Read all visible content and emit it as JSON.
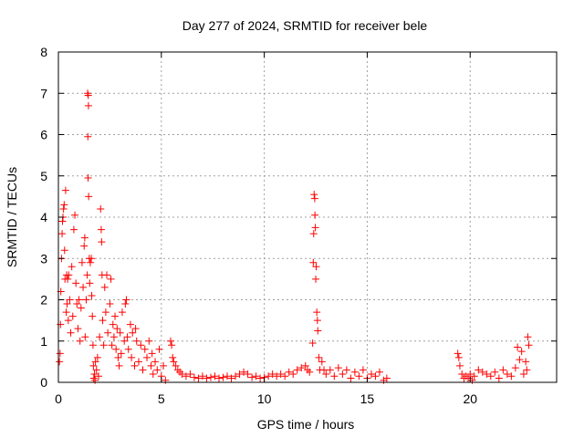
{
  "chart_data": {
    "type": "scatter",
    "title": "Day 277 of 2024, SRMTID for receiver bele",
    "xlabel": "GPS time / hours",
    "ylabel": "SRMTID / TECUs",
    "xlim": [
      0,
      24.2
    ],
    "ylim": [
      0,
      8
    ],
    "xticks": [
      0,
      5,
      10,
      15,
      20
    ],
    "yticks": [
      0,
      1,
      2,
      3,
      4,
      5,
      6,
      7,
      8
    ],
    "grid": true,
    "marker": "+",
    "colors": {
      "marker": "#ff0000",
      "grid": "#a0a0a0",
      "axis": "#000000"
    },
    "series": [
      {
        "name": "SRMTID",
        "points": [
          [
            0.05,
            0.5
          ],
          [
            0.08,
            0.7
          ],
          [
            0.1,
            1.4
          ],
          [
            0.12,
            2.2
          ],
          [
            0.15,
            3.0
          ],
          [
            0.18,
            3.6
          ],
          [
            0.2,
            3.9
          ],
          [
            0.22,
            4.0
          ],
          [
            0.25,
            4.2
          ],
          [
            0.28,
            4.3
          ],
          [
            0.3,
            3.2
          ],
          [
            0.32,
            2.5
          ],
          [
            0.35,
            4.65
          ],
          [
            0.38,
            1.7
          ],
          [
            0.4,
            2.6
          ],
          [
            0.42,
            1.9
          ],
          [
            0.45,
            2.5
          ],
          [
            0.48,
            1.5
          ],
          [
            0.5,
            2.6
          ],
          [
            0.55,
            2.0
          ],
          [
            0.6,
            1.2
          ],
          [
            0.65,
            2.8
          ],
          [
            0.7,
            1.6
          ],
          [
            0.75,
            3.7
          ],
          [
            0.8,
            4.05
          ],
          [
            0.85,
            2.4
          ],
          [
            0.9,
            1.9
          ],
          [
            0.95,
            1.3
          ],
          [
            1.0,
            2.0
          ],
          [
            1.05,
            1.0
          ],
          [
            1.1,
            1.8
          ],
          [
            1.15,
            2.9
          ],
          [
            1.2,
            2.3
          ],
          [
            1.25,
            3.3
          ],
          [
            1.28,
            3.5
          ],
          [
            1.3,
            1.1
          ],
          [
            1.35,
            2.0
          ],
          [
            1.4,
            2.6
          ],
          [
            1.42,
            7.0
          ],
          [
            1.45,
            6.95
          ],
          [
            1.46,
            6.7
          ],
          [
            1.43,
            5.95
          ],
          [
            1.44,
            4.95
          ],
          [
            1.47,
            4.5
          ],
          [
            1.5,
            3.0
          ],
          [
            1.52,
            2.4
          ],
          [
            1.55,
            2.9
          ],
          [
            1.6,
            3.0
          ],
          [
            1.62,
            2.1
          ],
          [
            1.65,
            1.6
          ],
          [
            1.68,
            0.9
          ],
          [
            1.7,
            0.4
          ],
          [
            1.72,
            0.1
          ],
          [
            1.75,
            0.2
          ],
          [
            1.78,
            0.05
          ],
          [
            1.8,
            0.5
          ],
          [
            1.85,
            0.3
          ],
          [
            1.9,
            0.6
          ],
          [
            1.95,
            0.15
          ],
          [
            2.0,
            1.1
          ],
          [
            2.05,
            4.2
          ],
          [
            2.08,
            3.7
          ],
          [
            2.1,
            3.4
          ],
          [
            2.12,
            2.6
          ],
          [
            2.15,
            1.5
          ],
          [
            2.2,
            0.9
          ],
          [
            2.25,
            2.3
          ],
          [
            2.3,
            1.7
          ],
          [
            2.35,
            2.6
          ],
          [
            2.4,
            1.2
          ],
          [
            2.5,
            1.9
          ],
          [
            2.55,
            2.5
          ],
          [
            2.6,
            0.9
          ],
          [
            2.65,
            1.4
          ],
          [
            2.7,
            1.1
          ],
          [
            2.75,
            1.6
          ],
          [
            2.8,
            0.8
          ],
          [
            2.85,
            1.3
          ],
          [
            2.9,
            0.6
          ],
          [
            2.95,
            0.4
          ],
          [
            3.0,
            1.2
          ],
          [
            3.05,
            0.7
          ],
          [
            3.1,
            1.7
          ],
          [
            3.2,
            1.0
          ],
          [
            3.25,
            1.9
          ],
          [
            3.3,
            2.0
          ],
          [
            3.35,
            1.1
          ],
          [
            3.4,
            0.8
          ],
          [
            3.5,
            1.4
          ],
          [
            3.55,
            0.6
          ],
          [
            3.6,
            1.2
          ],
          [
            3.7,
            0.4
          ],
          [
            3.75,
            1.3
          ],
          [
            3.8,
            1.0
          ],
          [
            3.9,
            0.5
          ],
          [
            4.0,
            0.9
          ],
          [
            4.1,
            0.3
          ],
          [
            4.2,
            0.8
          ],
          [
            4.3,
            0.6
          ],
          [
            4.4,
            1.0
          ],
          [
            4.5,
            0.4
          ],
          [
            4.55,
            0.7
          ],
          [
            4.6,
            0.2
          ],
          [
            4.7,
            0.5
          ],
          [
            4.8,
            0.3
          ],
          [
            4.9,
            0.8
          ],
          [
            5.0,
            0.15
          ],
          [
            5.1,
            0.4
          ],
          [
            5.2,
            0.05
          ],
          [
            5.45,
            1.0
          ],
          [
            5.5,
            0.9
          ],
          [
            5.55,
            0.6
          ],
          [
            5.6,
            0.5
          ],
          [
            5.7,
            0.4
          ],
          [
            5.8,
            0.3
          ],
          [
            5.9,
            0.25
          ],
          [
            6.0,
            0.2
          ],
          [
            6.2,
            0.15
          ],
          [
            6.4,
            0.2
          ],
          [
            6.6,
            0.12
          ],
          [
            6.8,
            0.1
          ],
          [
            7.0,
            0.15
          ],
          [
            7.2,
            0.1
          ],
          [
            7.4,
            0.12
          ],
          [
            7.6,
            0.15
          ],
          [
            7.8,
            0.1
          ],
          [
            8.0,
            0.12
          ],
          [
            8.2,
            0.15
          ],
          [
            8.4,
            0.1
          ],
          [
            8.6,
            0.15
          ],
          [
            8.8,
            0.2
          ],
          [
            9.0,
            0.25
          ],
          [
            9.2,
            0.2
          ],
          [
            9.4,
            0.12
          ],
          [
            9.6,
            0.15
          ],
          [
            9.8,
            0.1
          ],
          [
            10.0,
            0.12
          ],
          [
            10.2,
            0.15
          ],
          [
            10.4,
            0.2
          ],
          [
            10.6,
            0.15
          ],
          [
            10.8,
            0.2
          ],
          [
            11.0,
            0.15
          ],
          [
            11.2,
            0.25
          ],
          [
            11.4,
            0.2
          ],
          [
            11.6,
            0.3
          ],
          [
            11.8,
            0.35
          ],
          [
            12.0,
            0.4
          ],
          [
            12.1,
            0.3
          ],
          [
            12.2,
            0.25
          ],
          [
            12.35,
            0.95
          ],
          [
            12.38,
            2.9
          ],
          [
            12.4,
            3.6
          ],
          [
            12.42,
            4.55
          ],
          [
            12.45,
            4.45
          ],
          [
            12.46,
            4.05
          ],
          [
            12.48,
            3.75
          ],
          [
            12.5,
            2.5
          ],
          [
            12.52,
            2.8
          ],
          [
            12.55,
            1.7
          ],
          [
            12.58,
            1.5
          ],
          [
            12.6,
            1.25
          ],
          [
            12.65,
            0.6
          ],
          [
            12.7,
            0.3
          ],
          [
            12.8,
            0.5
          ],
          [
            12.9,
            0.3
          ],
          [
            13.0,
            0.2
          ],
          [
            13.2,
            0.3
          ],
          [
            13.4,
            0.15
          ],
          [
            13.6,
            0.35
          ],
          [
            13.8,
            0.2
          ],
          [
            14.0,
            0.3
          ],
          [
            14.2,
            0.1
          ],
          [
            14.4,
            0.25
          ],
          [
            14.6,
            0.15
          ],
          [
            14.8,
            0.3
          ],
          [
            15.0,
            0.1
          ],
          [
            15.2,
            0.2
          ],
          [
            15.4,
            0.15
          ],
          [
            15.6,
            0.25
          ],
          [
            15.8,
            0.05
          ],
          [
            15.95,
            0.1
          ],
          [
            19.4,
            0.7
          ],
          [
            19.45,
            0.6
          ],
          [
            19.5,
            0.4
          ],
          [
            19.6,
            0.2
          ],
          [
            19.7,
            0.1
          ],
          [
            19.8,
            0.15
          ],
          [
            19.9,
            0.1
          ],
          [
            20.0,
            0.2
          ],
          [
            20.1,
            0.05
          ],
          [
            20.2,
            0.15
          ],
          [
            20.4,
            0.3
          ],
          [
            20.6,
            0.25
          ],
          [
            20.8,
            0.2
          ],
          [
            21.0,
            0.15
          ],
          [
            21.2,
            0.25
          ],
          [
            21.4,
            0.1
          ],
          [
            21.6,
            0.3
          ],
          [
            21.8,
            0.2
          ],
          [
            22.0,
            0.15
          ],
          [
            22.2,
            0.35
          ],
          [
            22.3,
            0.85
          ],
          [
            22.4,
            0.55
          ],
          [
            22.5,
            0.75
          ],
          [
            22.6,
            0.2
          ],
          [
            22.7,
            0.5
          ],
          [
            22.75,
            0.3
          ],
          [
            22.8,
            1.1
          ],
          [
            22.85,
            0.9
          ]
        ]
      }
    ]
  }
}
